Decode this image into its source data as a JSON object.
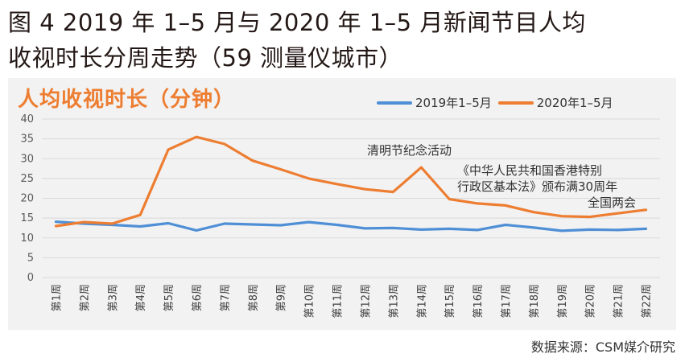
{
  "figure": {
    "title_line1": "图 4 2019 年 1–5 月与 2020 年 1–5 月新闻节目人均",
    "title_line2": "收视时长分周走势（59 测量仪城市）",
    "source": "数据来源：CSM媒介研究"
  },
  "colors": {
    "series_2019": "#4f8fd6",
    "series_2020": "#ed7d31",
    "panel_bg": "#f2f2f2",
    "grid": "#d9d9d9"
  },
  "chart_data": {
    "type": "line",
    "title": "人均收视时长（分钟）",
    "xlabel": "",
    "ylabel": "",
    "ylim": [
      0,
      40
    ],
    "yticks": [
      0,
      5,
      10,
      15,
      20,
      25,
      30,
      35,
      40
    ],
    "grid": true,
    "legend_position": "top-right",
    "categories": [
      "第1周",
      "第2周",
      "第3周",
      "第4周",
      "第5周",
      "第6周",
      "第7周",
      "第8周",
      "第9周",
      "第10周",
      "第11周",
      "第12周",
      "第13周",
      "第14周",
      "第15周",
      "第16周",
      "第17周",
      "第18周",
      "第19周",
      "第20周",
      "第21周",
      "第22周"
    ],
    "series": [
      {
        "name": "2019年1–5月",
        "values": [
          14.1,
          13.6,
          13.3,
          12.9,
          13.7,
          11.9,
          13.6,
          13.4,
          13.2,
          14.0,
          13.3,
          12.4,
          12.5,
          12.1,
          12.3,
          12.0,
          13.3,
          12.6,
          11.8,
          12.1,
          12.0,
          12.3
        ]
      },
      {
        "name": "2020年1–5月",
        "values": [
          13.0,
          14.0,
          13.6,
          15.8,
          32.3,
          35.5,
          33.7,
          29.5,
          27.3,
          25.0,
          23.6,
          22.3,
          21.6,
          27.8,
          19.8,
          18.7,
          18.2,
          16.5,
          15.5,
          15.3,
          16.2,
          17.1
        ]
      }
    ],
    "annotations": [
      {
        "text": "清明节纪念活动",
        "x": "第14周"
      },
      {
        "text": "《中华人民共和国香港特别",
        "x": "第19周"
      },
      {
        "text": "行政区基本法》颁布满30周年",
        "x": "第19周"
      },
      {
        "text": "全国两会",
        "x": "第22周"
      }
    ]
  }
}
